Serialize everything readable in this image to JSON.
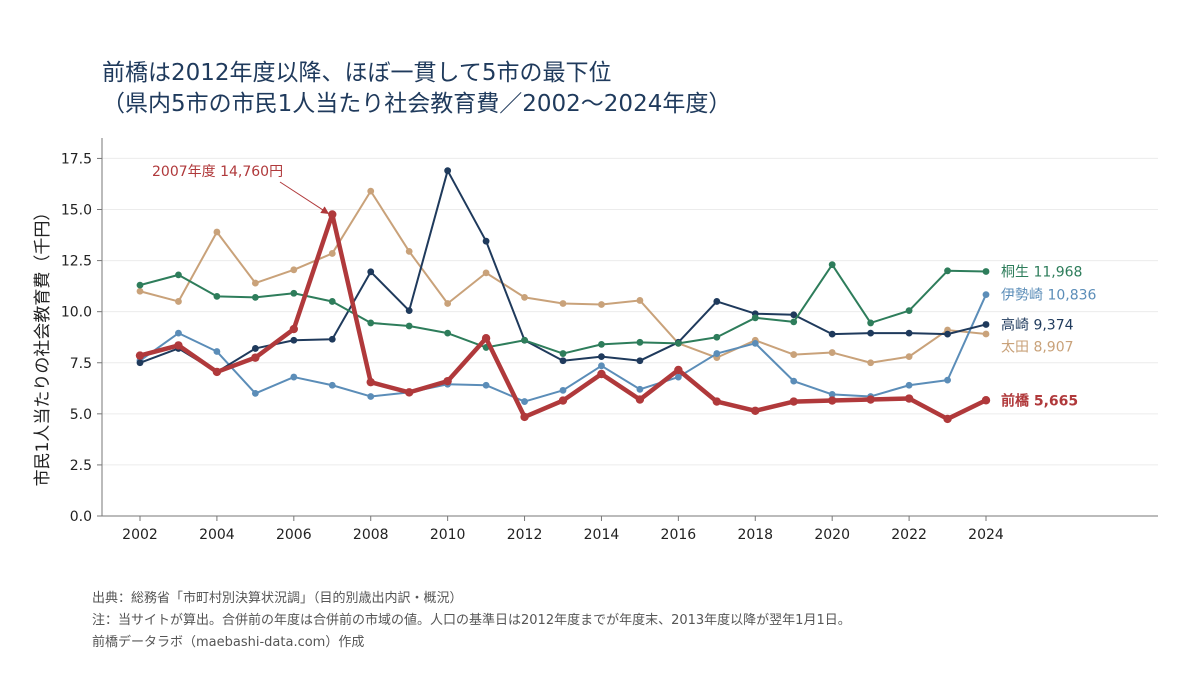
{
  "title": {
    "line1": "前橋は2012年度以降、ほぼ一貫して5市の最下位",
    "line2": "（県内5市の市民1人当たり社会教育費／2002〜2024年度）"
  },
  "chart_data": {
    "type": "line",
    "ylabel": "市民1人当たりの社会教育費（千円）",
    "xlabel": "",
    "x": [
      2002,
      2003,
      2004,
      2005,
      2006,
      2007,
      2008,
      2009,
      2010,
      2011,
      2012,
      2013,
      2014,
      2015,
      2016,
      2017,
      2018,
      2019,
      2020,
      2021,
      2022,
      2023,
      2024
    ],
    "x_ticks": [
      2002,
      2004,
      2006,
      2008,
      2010,
      2012,
      2014,
      2016,
      2018,
      2020,
      2022,
      2024
    ],
    "ylim": [
      0,
      18.5
    ],
    "y_ticks": [
      "0.0",
      "2.5",
      "5.0",
      "7.5",
      "10.0",
      "12.5",
      "15.0",
      "17.5"
    ],
    "grid": "horizontal",
    "series": [
      {
        "name": "太田",
        "end_label": "太田 8,907",
        "color": "#c9a27a",
        "width": 2,
        "values": [
          11.0,
          10.5,
          13.9,
          11.4,
          12.05,
          12.85,
          15.9,
          12.95,
          10.4,
          11.9,
          10.7,
          10.4,
          10.35,
          10.55,
          8.45,
          7.75,
          8.6,
          7.9,
          8.0,
          7.5,
          7.8,
          9.1,
          8.907
        ]
      },
      {
        "name": "伊勢崎",
        "end_label": "伊勢崎 10,836",
        "color": "#5b8db8",
        "width": 2,
        "values": [
          7.6,
          8.95,
          8.05,
          6.0,
          6.8,
          6.4,
          5.85,
          6.05,
          6.45,
          6.4,
          5.6,
          6.15,
          7.35,
          6.2,
          6.8,
          7.95,
          8.45,
          6.6,
          5.95,
          5.85,
          6.4,
          6.65,
          10.836
        ]
      },
      {
        "name": "高崎",
        "end_label": "高崎 9,374",
        "color": "#1f3a5c",
        "width": 2,
        "values": [
          7.5,
          8.2,
          7.05,
          8.2,
          8.6,
          8.65,
          11.95,
          10.05,
          16.9,
          13.45,
          8.6,
          7.6,
          7.8,
          7.6,
          8.5,
          10.5,
          9.9,
          9.85,
          8.9,
          8.95,
          8.95,
          8.9,
          9.374
        ]
      },
      {
        "name": "桐生",
        "end_label": "桐生 11,968",
        "color": "#2e7d5b",
        "width": 2,
        "values": [
          11.3,
          11.8,
          10.75,
          10.7,
          10.9,
          10.5,
          9.45,
          9.3,
          8.95,
          8.25,
          8.6,
          7.95,
          8.4,
          8.5,
          8.45,
          8.75,
          9.7,
          9.5,
          12.3,
          9.45,
          10.05,
          12.0,
          11.968
        ]
      },
      {
        "name": "前橋",
        "end_label": "前橋 5,665",
        "color": "#b0393b",
        "width": 4.5,
        "values": [
          7.85,
          8.35,
          7.05,
          7.75,
          9.15,
          14.76,
          6.55,
          6.05,
          6.6,
          8.7,
          4.85,
          5.65,
          6.95,
          5.7,
          7.15,
          5.6,
          5.15,
          5.6,
          5.65,
          5.7,
          5.75,
          4.75,
          5.665
        ]
      }
    ],
    "annotations": [
      {
        "text": "2007年度 14,760円",
        "x": 2007,
        "y": 14.76,
        "color": "#b0393b"
      }
    ]
  },
  "notes": {
    "source": "出典：総務省「市町村別決算状況調」（目的別歳出内訳・概況）",
    "note": "注：当サイトが算出。合併前の年度は合併前の市域の値。人口の基準日は2012年度までが年度末、2013年度以降が翌年1月1日。",
    "credit": "前橋データラボ（maebashi-data.com）作成"
  }
}
